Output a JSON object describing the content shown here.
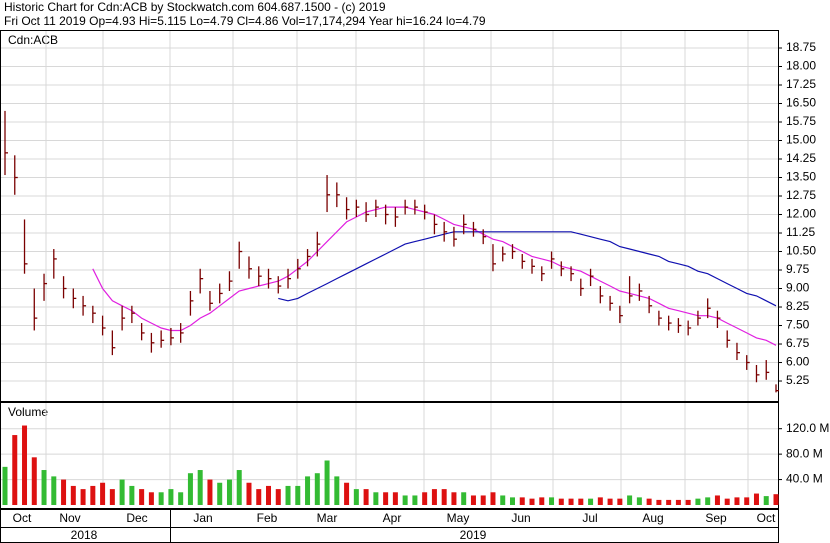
{
  "header": {
    "title": "Historic Chart for Cdn:ACB by Stockwatch.com 604.687.1500 - (c) 2019",
    "quote": "Fri Oct 11 2019  Op=4.93  Hi=5.115  Lo=4.79  Cl=4.86  Vol=17,174,294  Year hi=16.24  lo=4.79"
  },
  "x_axis": {
    "months": [
      "Oct",
      "Nov",
      "Dec",
      "Jan",
      "Feb",
      "Mar",
      "Apr",
      "May",
      "Jun",
      "Jul",
      "Aug",
      "Sep",
      "Oct"
    ],
    "years": [
      "2018",
      "2019"
    ]
  },
  "chart_data": [
    {
      "type": "ohlc",
      "label": "Cdn:ACB",
      "color": "#7a0000",
      "close": [
        14.5,
        13.5,
        10.0,
        7.8,
        9.2,
        10.2,
        9.0,
        8.6,
        8.3,
        8.0,
        7.4,
        6.6,
        7.8,
        8.0,
        7.2,
        6.8,
        6.9,
        7.0,
        7.2,
        8.5,
        9.4,
        8.4,
        8.8,
        9.3,
        10.5,
        9.8,
        9.5,
        9.4,
        9.1,
        9.4,
        9.8,
        10.3,
        10.8,
        12.8,
        12.8,
        12.2,
        12.3,
        12.0,
        12.3,
        12.0,
        11.9,
        12.3,
        12.3,
        12.1,
        11.6,
        11.3,
        11.0,
        11.6,
        11.4,
        11.1,
        10.0,
        10.4,
        10.5,
        10.1,
        9.9,
        9.6,
        10.2,
        9.8,
        9.6,
        9.0,
        9.5,
        8.7,
        8.4,
        7.9,
        8.7,
        8.9,
        8.3,
        7.8,
        7.6,
        7.5,
        7.4,
        7.8,
        8.2,
        7.8,
        6.9,
        6.4,
        6.0,
        5.5,
        5.6,
        4.86
      ],
      "high": [
        16.2,
        14.4,
        11.8,
        9.0,
        9.6,
        10.6,
        9.5,
        9.0,
        8.7,
        8.3,
        7.9,
        7.3,
        8.3,
        8.3,
        7.6,
        7.2,
        7.3,
        7.4,
        7.6,
        8.9,
        9.8,
        8.9,
        9.2,
        9.7,
        10.9,
        10.3,
        9.9,
        9.8,
        9.5,
        9.8,
        10.2,
        10.6,
        11.3,
        13.6,
        13.3,
        12.7,
        12.6,
        12.5,
        12.6,
        12.4,
        12.3,
        12.6,
        12.6,
        12.4,
        12.0,
        11.7,
        11.5,
        12.0,
        11.7,
        11.4,
        10.8,
        10.7,
        10.8,
        10.4,
        10.2,
        9.9,
        10.5,
        10.1,
        9.9,
        9.4,
        9.8,
        9.1,
        8.7,
        8.3,
        9.5,
        9.2,
        8.7,
        8.1,
        7.9,
        7.8,
        7.7,
        8.1,
        8.6,
        8.1,
        7.3,
        6.8,
        6.3,
        5.9,
        6.1,
        5.115
      ],
      "low": [
        13.6,
        12.8,
        9.6,
        7.3,
        8.5,
        9.4,
        8.6,
        8.2,
        7.9,
        7.6,
        7.1,
        6.3,
        7.3,
        7.6,
        6.9,
        6.4,
        6.6,
        6.7,
        6.8,
        7.9,
        8.8,
        8.1,
        8.4,
        8.9,
        9.8,
        9.4,
        9.1,
        9.0,
        8.8,
        9.0,
        9.4,
        9.9,
        10.3,
        12.1,
        12.3,
        11.8,
        11.9,
        11.7,
        11.9,
        11.6,
        11.5,
        12.0,
        12.0,
        11.8,
        11.2,
        10.9,
        10.7,
        11.2,
        11.1,
        10.8,
        9.7,
        10.1,
        10.2,
        9.8,
        9.6,
        9.3,
        9.8,
        9.5,
        9.3,
        8.7,
        9.1,
        8.4,
        8.1,
        7.6,
        8.4,
        8.5,
        8.0,
        7.5,
        7.3,
        7.2,
        7.1,
        7.5,
        7.8,
        7.4,
        6.6,
        6.1,
        5.7,
        5.2,
        5.3,
        4.79
      ],
      "series": [
        {
          "color": "#e020e0",
          "values": [
            null,
            null,
            null,
            null,
            null,
            null,
            null,
            null,
            null,
            9.8,
            9.0,
            8.5,
            8.3,
            8.1,
            7.8,
            7.6,
            7.4,
            7.3,
            7.3,
            7.5,
            7.8,
            8.0,
            8.3,
            8.6,
            8.9,
            9.0,
            9.1,
            9.2,
            9.3,
            9.5,
            9.8,
            10.1,
            10.5,
            10.9,
            11.3,
            11.7,
            11.9,
            12.1,
            12.2,
            12.3,
            12.3,
            12.3,
            12.2,
            12.1,
            12.0,
            11.8,
            11.6,
            11.5,
            11.4,
            11.2,
            11.0,
            10.9,
            10.7,
            10.5,
            10.3,
            10.2,
            10.1,
            9.9,
            9.8,
            9.7,
            9.5,
            9.3,
            9.1,
            8.9,
            8.8,
            8.7,
            8.6,
            8.4,
            8.2,
            8.1,
            8.0,
            7.9,
            7.9,
            7.8,
            7.6,
            7.4,
            7.2,
            7.0,
            6.9,
            6.7
          ]
        },
        {
          "color": "#1010b0",
          "values": [
            null,
            null,
            null,
            null,
            null,
            null,
            null,
            null,
            null,
            null,
            null,
            null,
            null,
            null,
            null,
            null,
            null,
            null,
            null,
            null,
            null,
            null,
            null,
            null,
            null,
            null,
            null,
            null,
            8.6,
            8.5,
            8.6,
            8.8,
            9.0,
            9.2,
            9.4,
            9.6,
            9.8,
            10.0,
            10.2,
            10.4,
            10.6,
            10.8,
            10.9,
            11.0,
            11.1,
            11.2,
            11.3,
            11.3,
            11.3,
            11.3,
            11.3,
            11.3,
            11.3,
            11.3,
            11.3,
            11.3,
            11.3,
            11.3,
            11.3,
            11.2,
            11.1,
            11.0,
            10.9,
            10.7,
            10.6,
            10.5,
            10.4,
            10.3,
            10.1,
            10.0,
            9.9,
            9.7,
            9.6,
            9.4,
            9.2,
            9.0,
            8.8,
            8.7,
            8.5,
            8.3
          ]
        }
      ],
      "ylim": [
        4.44,
        19.48
      ],
      "yticks": [
        5.25,
        {
          "value": 6,
          "label": "6.00"
        },
        6.75,
        {
          "value": 7.5,
          "label": "7.50"
        },
        8.25,
        {
          "value": 9,
          "label": "9.00"
        },
        9.75,
        {
          "value": 10.5,
          "label": "10.50"
        },
        11.25,
        {
          "value": 12,
          "label": "12.00"
        },
        12.75,
        {
          "value": 13.5,
          "label": "13.50"
        },
        14.25,
        {
          "value": 15,
          "label": "15.00"
        },
        15.75,
        {
          "value": 16.5,
          "label": "16.50"
        },
        17.25,
        {
          "value": 18,
          "label": "18.00"
        },
        18.75
      ],
      "grid": true
    },
    {
      "type": "bar",
      "label": "Volume",
      "up_color": "#33bb33",
      "down_color": "#dd1111",
      "values": [
        60,
        110,
        125,
        75,
        55,
        45,
        40,
        30,
        25,
        30,
        35,
        25,
        40,
        30,
        25,
        20,
        20,
        25,
        20,
        50,
        55,
        40,
        35,
        40,
        55,
        35,
        25,
        30,
        25,
        30,
        30,
        45,
        50,
        70,
        45,
        35,
        25,
        25,
        20,
        20,
        20,
        15,
        15,
        20,
        25,
        25,
        20,
        20,
        15,
        15,
        20,
        15,
        12,
        12,
        10,
        12,
        12,
        10,
        10,
        10,
        10,
        12,
        10,
        10,
        15,
        12,
        10,
        8,
        8,
        8,
        8,
        10,
        12,
        15,
        10,
        12,
        12,
        18,
        14,
        17
      ],
      "ylim": [
        0,
        162
      ],
      "yticks": [
        {
          "value": 40,
          "label": "40.0 M"
        },
        {
          "value": 80,
          "label": "80.0 M"
        },
        {
          "value": 120,
          "label": "120.0 M"
        }
      ],
      "grid": true
    }
  ]
}
